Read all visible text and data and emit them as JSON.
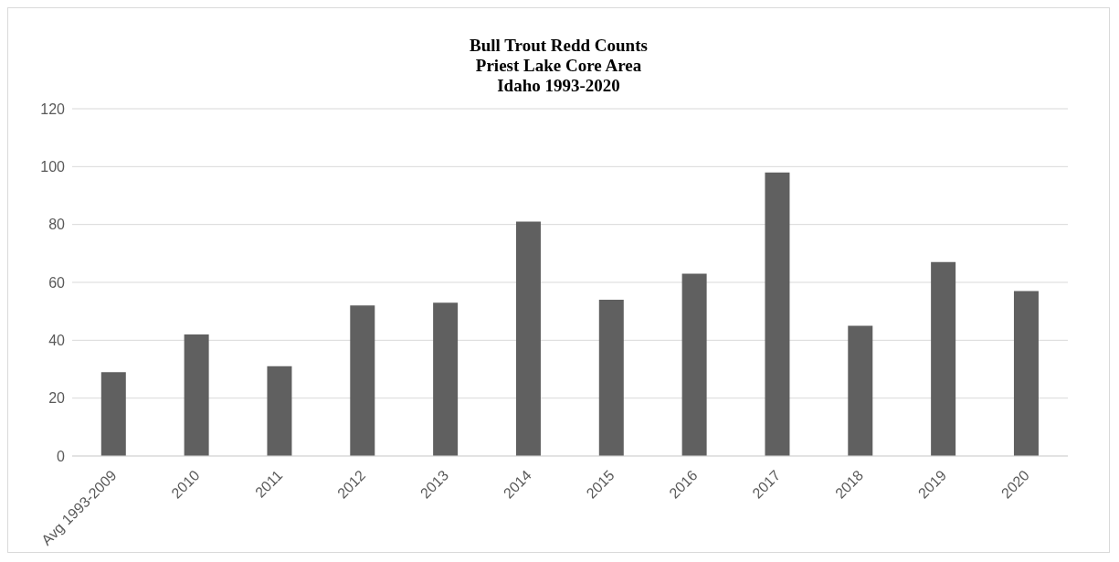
{
  "chart_data": {
    "type": "bar",
    "title": "Bull Trout Redd Counts\nPriest Lake Core Area\nIdaho 1993-2020",
    "categories": [
      "Avg 1993-2009",
      "2010",
      "2011",
      "2012",
      "2013",
      "2014",
      "2015",
      "2016",
      "2017",
      "2018",
      "2019",
      "2020"
    ],
    "values": [
      29,
      42,
      31,
      52,
      53,
      81,
      54,
      63,
      98,
      45,
      67,
      57
    ],
    "color": "#606060",
    "ylim": [
      0,
      120
    ],
    "yticks": [
      0,
      20,
      40,
      60,
      80,
      100,
      120
    ],
    "grid": "y"
  }
}
